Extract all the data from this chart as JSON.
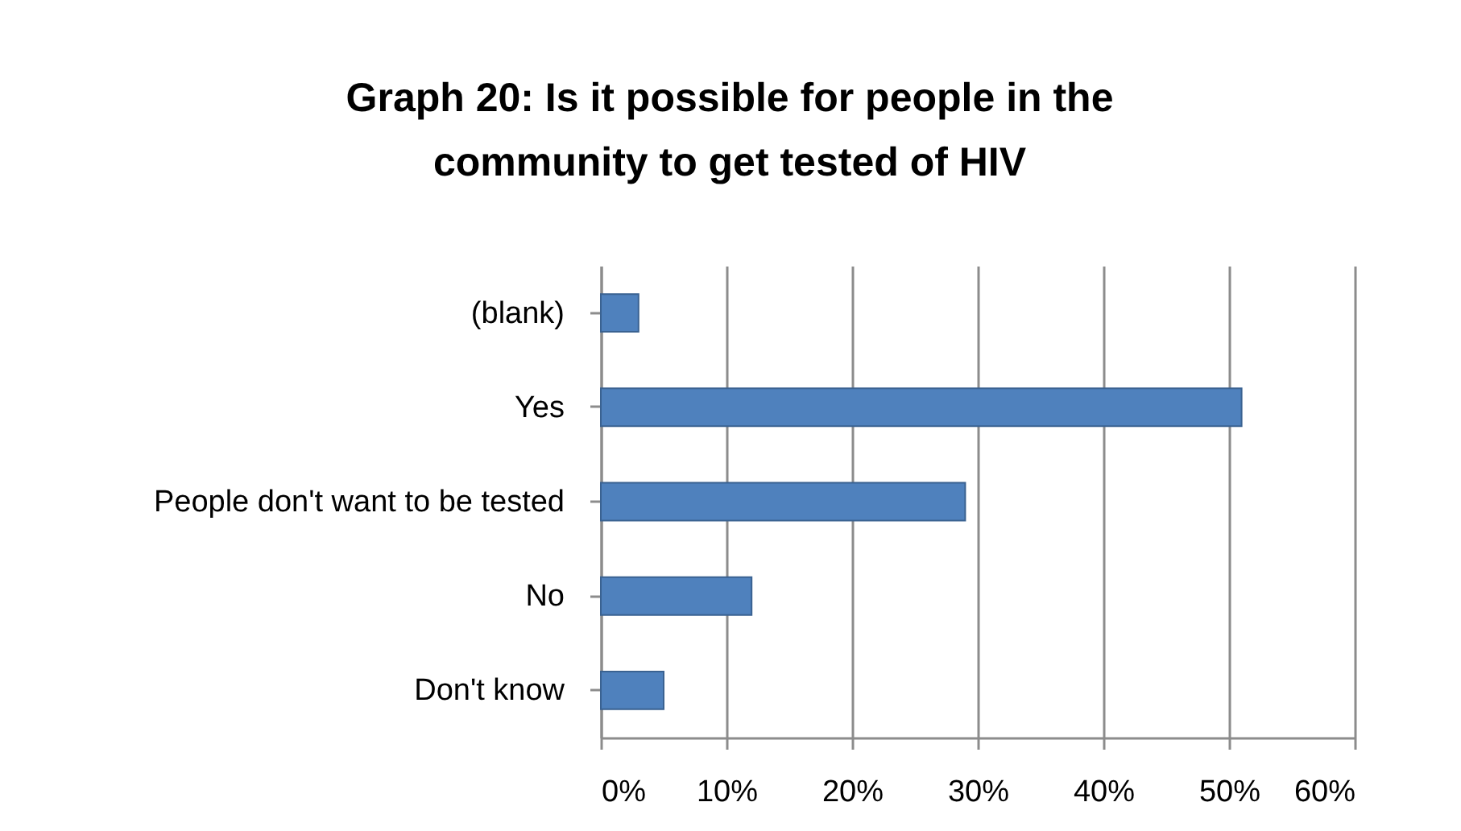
{
  "chart_data": {
    "type": "bar",
    "orientation": "horizontal",
    "title": "Graph 20: Is it possible for people in the community to get tested of HIV",
    "categories": [
      "(blank)",
      "Yes",
      "People don't want to be tested",
      "No",
      "Don't know"
    ],
    "values": [
      3,
      51,
      29,
      12,
      5
    ],
    "color": "#4f81bd",
    "xlim": [
      0,
      60
    ],
    "xticks": [
      {
        "value": 0,
        "label": "0%"
      },
      {
        "value": 10,
        "label": "10%"
      },
      {
        "value": 20,
        "label": "20%"
      },
      {
        "value": 30,
        "label": "30%"
      },
      {
        "value": 40,
        "label": "40%"
      },
      {
        "value": 50,
        "label": "50%"
      },
      {
        "value": 60,
        "label": "60%"
      }
    ],
    "grid": "x"
  }
}
